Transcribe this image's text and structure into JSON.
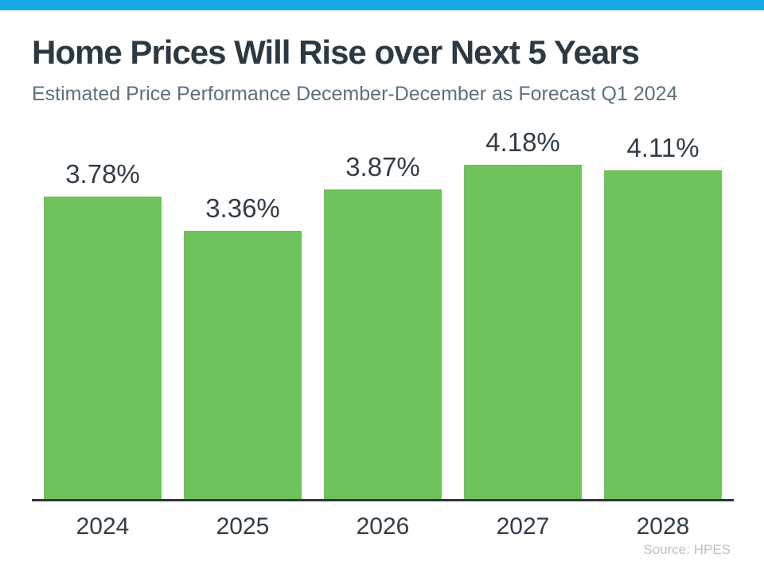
{
  "accent": {
    "top_bar_color": "#17a8e8"
  },
  "header": {
    "title": "Home Prices Will Rise over Next 5 Years",
    "subtitle": "Estimated Price Performance December-December as Forecast Q1 2024"
  },
  "chart_data": {
    "type": "bar",
    "title": "Home Prices Will Rise over Next 5 Years",
    "subtitle": "Estimated Price Performance December-December as Forecast Q1 2024",
    "categories": [
      "2024",
      "2025",
      "2026",
      "2027",
      "2028"
    ],
    "values": [
      3.78,
      3.36,
      3.87,
      4.18,
      4.11
    ],
    "labels": [
      "3.78%",
      "3.36%",
      "3.87%",
      "4.18%",
      "4.11%"
    ],
    "unit": "%",
    "xlabel": "",
    "ylabel": "",
    "ylim": [
      0,
      4.75
    ],
    "grid": false,
    "legend": false,
    "bar_color": "#6fc15b",
    "label_color": "#323d47",
    "axis_color": "#2d363c"
  },
  "footer": {
    "source": "Source: HPES"
  }
}
